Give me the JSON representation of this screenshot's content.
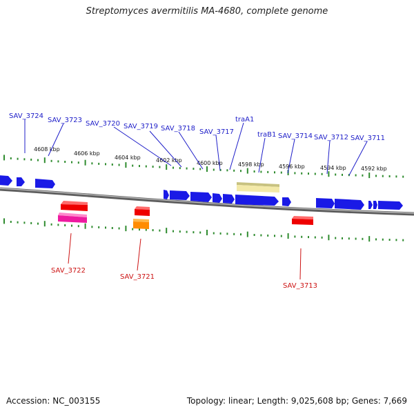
{
  "title": "Streptomyces avermitilis MA-4680, complete genome",
  "footer": {
    "accession": "Accession: NC_003155",
    "summary": "Topology: linear; Length: 9,025,608 bp; Genes: 7,669"
  },
  "colors": {
    "forward_gene": "#1a1ae6",
    "forward_label": "#1c1cc8",
    "reverse_label": "#cc1111",
    "backbone": "#8a8a8a",
    "tick": "#2e8b2e"
  },
  "scale_labels": [
    "4608 kbp",
    "4606 kbp",
    "4604 kbp",
    "4602 kbp",
    "4600 kbp",
    "4598 kbp",
    "4596 kbp",
    "4594 kbp",
    "4592 kbp"
  ],
  "forward_genes": [
    "SAV_3724",
    "SAV_3723",
    "SAV_3720",
    "SAV_3719",
    "SAV_3718",
    "SAV_3717",
    "traA1",
    "traB1",
    "SAV_3714",
    "SAV_3712",
    "SAV_3711"
  ],
  "reverse_genes": [
    "SAV_3722",
    "SAV_3721",
    "SAV_3713"
  ]
}
